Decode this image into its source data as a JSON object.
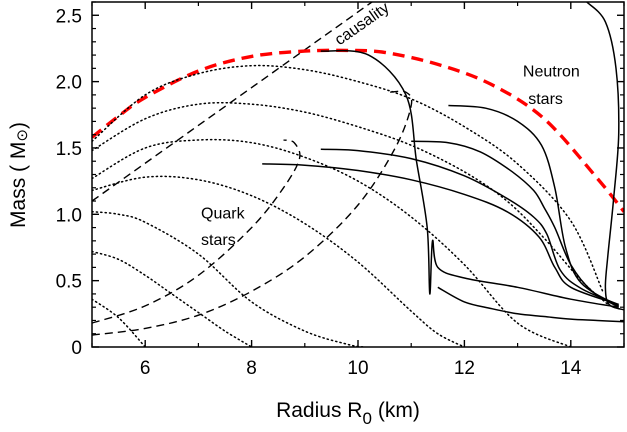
{
  "chart_data": {
    "type": "line",
    "title": "",
    "xlabel": "Radius R",
    "xlabel_sub": "0",
    "xlabel_unit": "(km)",
    "ylabel": "Mass ( M",
    "ylabel_symbol": "⊙",
    "ylabel_close": ")",
    "xlim": [
      5,
      15
    ],
    "ylim": [
      0,
      2.6
    ],
    "xticks": [
      6,
      8,
      10,
      12,
      14
    ],
    "yticks": [
      0,
      0.5,
      1.0,
      1.5,
      2.0,
      2.5
    ],
    "ytick_labels": [
      "0",
      "0.5",
      "1.0",
      "1.5",
      "2.0",
      "2.5"
    ],
    "grid": false,
    "annotations": [
      {
        "text": "causality",
        "x": 9.65,
        "y": 2.27,
        "rotation": -35
      },
      {
        "text": "Neutron",
        "x": 13.1,
        "y": 2.04
      },
      {
        "text": "stars",
        "x": 13.2,
        "y": 1.83
      },
      {
        "text": "Quark",
        "x": 7.05,
        "y": 0.97
      },
      {
        "text": "stars",
        "x": 7.05,
        "y": 0.77
      }
    ],
    "series": [
      {
        "name": "causality-line",
        "style": "dashed",
        "color": "#000000",
        "x": [
          5.0,
          15.0
        ],
        "y": [
          1.1,
          3.95
        ]
      },
      {
        "name": "max-mass-limit",
        "style": "dashed-thick",
        "color": "#ff0000",
        "x": [
          5.0,
          5.5,
          6.0,
          7.0,
          8.0,
          9.0,
          9.8,
          10.5,
          11.5,
          12.5,
          13.5,
          14.5,
          15.0
        ],
        "y": [
          1.58,
          1.74,
          1.88,
          2.08,
          2.19,
          2.23,
          2.235,
          2.22,
          2.13,
          1.98,
          1.72,
          1.27,
          1.02
        ]
      },
      {
        "name": "dotted-1",
        "style": "dotted",
        "color": "#000000",
        "x": [
          5.0,
          6.0,
          7.0,
          8.0,
          9.0,
          10.0,
          11.0,
          12.0,
          13.0,
          14.0,
          14.6
        ],
        "y": [
          1.55,
          1.9,
          2.06,
          2.12,
          2.09,
          2.0,
          1.87,
          1.66,
          1.38,
          0.95,
          0.42
        ]
      },
      {
        "name": "dotted-2",
        "style": "dotted",
        "color": "#000000",
        "x": [
          5.0,
          6.0,
          7.0,
          8.0,
          9.0,
          10.0,
          11.0,
          12.0,
          12.8,
          13.5,
          14.2,
          14.7
        ],
        "y": [
          1.48,
          1.72,
          1.83,
          1.83,
          1.77,
          1.66,
          1.52,
          1.32,
          1.1,
          0.82,
          0.5,
          0.32
        ]
      },
      {
        "name": "dotted-3",
        "style": "dotted",
        "color": "#000000",
        "x": [
          5.0,
          6.0,
          7.0,
          8.0,
          9.0,
          10.0,
          11.0,
          12.0,
          13.0,
          14.0
        ],
        "y": [
          1.27,
          1.5,
          1.56,
          1.54,
          1.43,
          1.25,
          0.98,
          0.62,
          0.18,
          0.0
        ]
      },
      {
        "name": "dotted-4",
        "style": "dotted",
        "color": "#000000",
        "x": [
          5.0,
          6.0,
          7.0,
          8.0,
          9.0,
          10.0,
          11.0,
          11.5,
          12.0
        ],
        "y": [
          1.18,
          1.28,
          1.26,
          1.14,
          0.93,
          0.64,
          0.27,
          0.1,
          0.0
        ]
      },
      {
        "name": "dotted-5",
        "style": "dotted",
        "color": "#000000",
        "x": [
          5.0,
          5.5,
          6.0,
          7.0,
          8.0,
          9.0,
          9.8,
          10.1
        ],
        "y": [
          1.02,
          1.0,
          0.94,
          0.7,
          0.34,
          0.12,
          0.02,
          0.0
        ]
      },
      {
        "name": "dotted-6",
        "style": "dotted",
        "color": "#000000",
        "x": [
          5.0,
          5.5,
          6.0,
          6.5,
          7.0,
          7.5,
          8.0
        ],
        "y": [
          0.72,
          0.66,
          0.54,
          0.4,
          0.26,
          0.12,
          0.0
        ]
      },
      {
        "name": "dotted-7",
        "style": "dotted",
        "color": "#000000",
        "x": [
          5.0,
          5.5,
          6.0
        ],
        "y": [
          0.36,
          0.22,
          0.0
        ]
      },
      {
        "name": "quark-dashed-1",
        "style": "dashed",
        "color": "#000000",
        "x": [
          5.0,
          6.0,
          7.0,
          8.0,
          8.6,
          8.9,
          8.8,
          8.6
        ],
        "y": [
          0.18,
          0.31,
          0.54,
          0.9,
          1.2,
          1.42,
          1.54,
          1.56
        ]
      },
      {
        "name": "quark-dashed-2",
        "style": "dashed",
        "color": "#000000",
        "x": [
          5.0,
          6.0,
          7.0,
          8.0,
          9.0,
          10.0,
          10.7,
          11.0,
          10.9,
          10.6
        ],
        "y": [
          0.09,
          0.14,
          0.24,
          0.42,
          0.68,
          1.07,
          1.5,
          1.82,
          1.92,
          1.92
        ]
      },
      {
        "name": "neutron-1",
        "style": "solid",
        "color": "#000000",
        "x": [
          9.3,
          10.2,
          10.9,
          11.1,
          11.3,
          11.35,
          11.4,
          11.5,
          12.0,
          13.0,
          14.0,
          14.9
        ],
        "y": [
          2.23,
          2.2,
          1.9,
          1.4,
          0.9,
          0.4,
          0.8,
          0.6,
          0.52,
          0.45,
          0.36,
          0.3
        ]
      },
      {
        "name": "neutron-2",
        "style": "solid",
        "color": "#000000",
        "x": [
          8.2,
          9.0,
          10.0,
          11.0,
          12.0,
          12.8,
          13.4,
          13.7,
          14.0,
          14.9
        ],
        "y": [
          1.38,
          1.37,
          1.33,
          1.26,
          1.15,
          1.02,
          0.83,
          0.6,
          0.45,
          0.32
        ]
      },
      {
        "name": "neutron-3",
        "style": "solid",
        "color": "#000000",
        "x": [
          9.3,
          10.0,
          11.0,
          12.0,
          12.8,
          13.3,
          13.55,
          13.8,
          14.2,
          14.9
        ],
        "y": [
          1.49,
          1.48,
          1.42,
          1.29,
          1.12,
          0.98,
          0.85,
          0.58,
          0.44,
          0.32
        ]
      },
      {
        "name": "neutron-4",
        "style": "solid",
        "color": "#000000",
        "x": [
          11.0,
          11.7,
          12.3,
          12.9,
          13.3,
          13.5,
          13.7,
          14.0,
          14.4,
          14.9
        ],
        "y": [
          1.55,
          1.54,
          1.47,
          1.32,
          1.18,
          1.05,
          0.9,
          0.62,
          0.42,
          0.3
        ]
      },
      {
        "name": "neutron-5",
        "style": "solid",
        "color": "#000000",
        "x": [
          11.7,
          12.4,
          13.0,
          13.45,
          13.7,
          13.9,
          14.2,
          14.9
        ],
        "y": [
          1.82,
          1.8,
          1.7,
          1.52,
          1.2,
          0.75,
          0.48,
          0.31
        ]
      },
      {
        "name": "neutron-6",
        "style": "solid",
        "color": "#000000",
        "x": [
          14.3,
          14.65,
          14.85,
          14.9,
          14.8,
          14.7,
          14.65,
          14.72,
          15.0
        ],
        "y": [
          2.6,
          2.45,
          2.1,
          1.6,
          1.1,
          0.7,
          0.45,
          0.32,
          0.28
        ]
      },
      {
        "name": "neutron-7",
        "style": "solid",
        "color": "#000000",
        "x": [
          11.5,
          12.0,
          12.5,
          13.0,
          13.5,
          14.0,
          14.5,
          15.0
        ],
        "y": [
          0.45,
          0.34,
          0.29,
          0.25,
          0.23,
          0.21,
          0.2,
          0.19
        ]
      }
    ]
  }
}
